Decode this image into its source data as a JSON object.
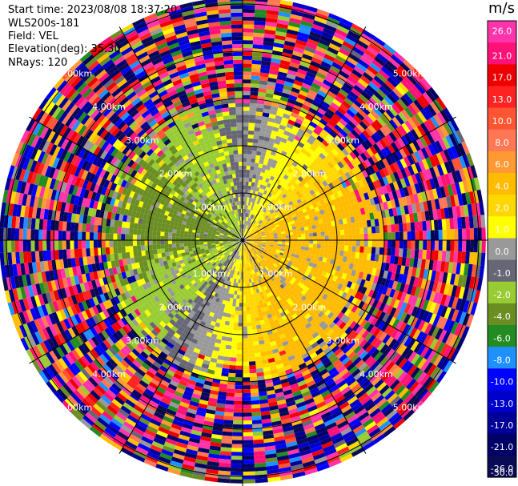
{
  "header": {
    "start_time": "Start time: 2023/08/08 18:37:20",
    "instrument": "WLS200s-181",
    "field": "Field: VEL",
    "elevation": "Elevation(deg): 35.30",
    "nrays": "NRays: 120"
  },
  "colorbar": {
    "unit": "m/s",
    "ticks": [
      "26.0",
      "21.0",
      "17.0",
      "13.0",
      "10.0",
      "8.0",
      "6.0",
      "4.0",
      "2.0",
      "1.0",
      "0.0",
      "-1.0",
      "-2.0",
      "-4.0",
      "-6.0",
      "-8.0",
      "-10.0",
      "-13.0",
      "-17.0",
      "-21.0",
      "-26.0",
      "-30.0"
    ],
    "colors": [
      "#ff33aa",
      "#ff1177",
      "#ee0000",
      "#ff2222",
      "#ff5533",
      "#ff7755",
      "#ff9933",
      "#ffbb00",
      "#ffd700",
      "#ffff00",
      "#999999",
      "#666677",
      "#99cc33",
      "#6b8e23",
      "#228b22",
      "#1e90ff",
      "#0000ff",
      "#0000cc",
      "#000099",
      "#000066",
      "#0a0a55"
    ]
  },
  "chart_data": {
    "type": "heatmap",
    "projection": "polar PPI",
    "field": "VEL",
    "units": "m/s",
    "n_rays": 120,
    "elevation_deg": 35.3,
    "range_ring_labels": [
      "1.00km",
      "2.00km",
      "3.00km",
      "4.00km",
      "5.00km"
    ],
    "range_rings_km": [
      1,
      2,
      3,
      4,
      5
    ],
    "color_scale": {
      "vmin": -30.0,
      "vmax": 26.0
    },
    "description_of_field": [
      {
        "range_km": [
          0,
          3
        ],
        "azimuth": "west / north-west",
        "velocity_ms": [
          -6,
          -2
        ]
      },
      {
        "range_km": [
          0,
          3
        ],
        "azimuth": "east / south-east",
        "velocity_ms": [
          1,
          4
        ]
      },
      {
        "range_km": [
          0,
          3
        ],
        "azimuth": "near zero sectors",
        "velocity_ms": [
          -1,
          1
        ]
      },
      {
        "range_km": [
          3,
          5.3
        ],
        "azimuth": "all",
        "velocity_ms": "noise, full scale -30 to 26"
      }
    ]
  }
}
